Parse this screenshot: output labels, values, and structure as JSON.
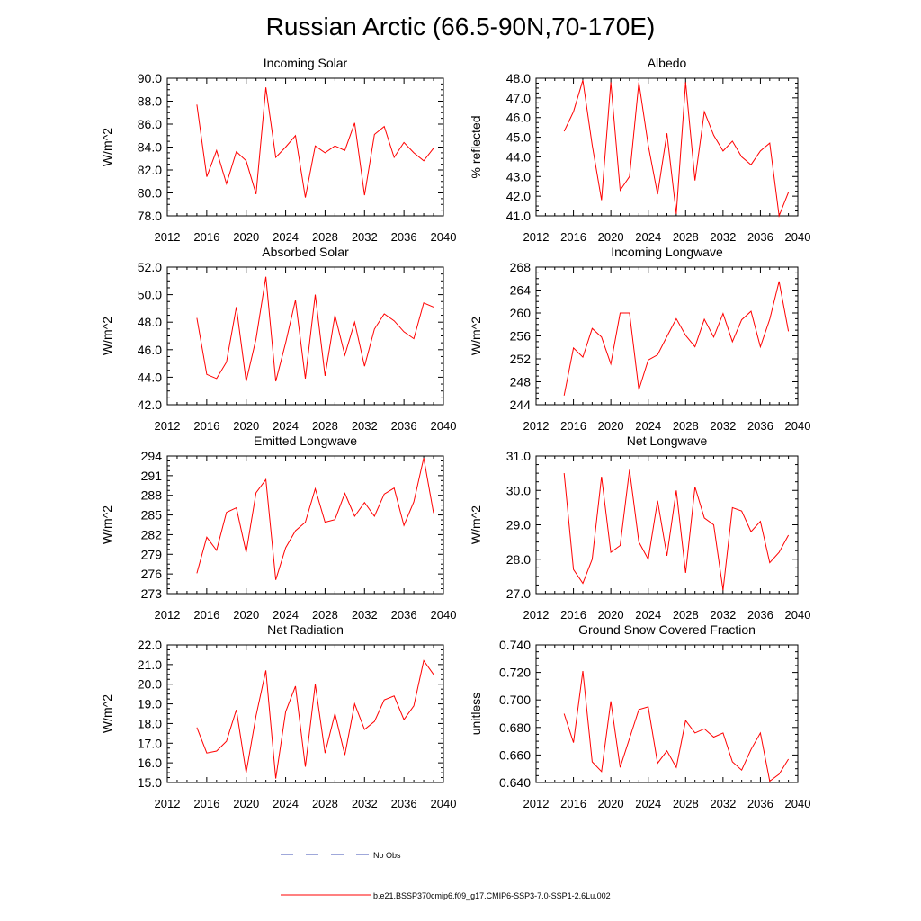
{
  "figure": {
    "title": "Russian Arctic (66.5-90N,70-170E)"
  },
  "legend": [
    {
      "label": "No Obs",
      "color": "#3f51b5",
      "style": "dashed"
    },
    {
      "label": "b.e21.BSSP370cmip6.f09_g17.CMIP6-SSP3-7.0-SSP1-2.6Lu.002",
      "color": "#ff0000",
      "style": "solid"
    }
  ],
  "chart_data": [
    {
      "type": "line",
      "title": "Incoming Solar",
      "xlabel": "",
      "ylabel": "W/m^2",
      "xlim": [
        2012,
        2040
      ],
      "ylim": [
        78.0,
        90.0
      ],
      "xticks": [
        2012,
        2016,
        2020,
        2024,
        2028,
        2032,
        2036,
        2040
      ],
      "yticks": [
        "78.0",
        "80.0",
        "82.0",
        "84.0",
        "86.0",
        "88.0",
        "90.0"
      ],
      "series": [
        {
          "color": "#ff0000",
          "x": [
            2015,
            2016,
            2017,
            2018,
            2019,
            2020,
            2021,
            2022,
            2023,
            2024,
            2025,
            2026,
            2027,
            2028,
            2029,
            2030,
            2031,
            2032,
            2033,
            2034,
            2035,
            2036,
            2037,
            2038,
            2039
          ],
          "values": [
            87.7,
            81.4,
            83.7,
            80.8,
            83.6,
            82.8,
            79.9,
            89.2,
            83.1,
            84.0,
            85.0,
            79.6,
            84.1,
            83.5,
            84.1,
            83.7,
            86.1,
            79.8,
            85.1,
            85.8,
            83.1,
            84.4,
            83.5,
            82.8,
            83.9
          ]
        }
      ]
    },
    {
      "type": "line",
      "title": "Albedo",
      "xlabel": "",
      "ylabel": "% reflected",
      "xlim": [
        2012,
        2040
      ],
      "ylim": [
        41.0,
        48.0
      ],
      "xticks": [
        2012,
        2016,
        2020,
        2024,
        2028,
        2032,
        2036,
        2040
      ],
      "yticks": [
        "41.0",
        "42.0",
        "43.0",
        "44.0",
        "45.0",
        "46.0",
        "47.0",
        "48.0"
      ],
      "series": [
        {
          "color": "#ff0000",
          "x": [
            2015,
            2016,
            2017,
            2018,
            2019,
            2020,
            2021,
            2022,
            2023,
            2024,
            2025,
            2026,
            2027,
            2028,
            2029,
            2030,
            2031,
            2032,
            2033,
            2034,
            2035,
            2036,
            2037,
            2038,
            2039
          ],
          "values": [
            45.3,
            46.3,
            47.9,
            44.6,
            41.8,
            47.8,
            42.3,
            43.0,
            47.8,
            44.6,
            42.1,
            45.2,
            41.1,
            47.8,
            42.8,
            46.3,
            45.1,
            44.3,
            44.8,
            44.0,
            43.6,
            44.3,
            44.7,
            41.0,
            42.2
          ]
        }
      ]
    },
    {
      "type": "line",
      "title": "Absorbed Solar",
      "xlabel": "",
      "ylabel": "W/m^2",
      "xlim": [
        2012,
        2040
      ],
      "ylim": [
        42.0,
        52.0
      ],
      "xticks": [
        2012,
        2016,
        2020,
        2024,
        2028,
        2032,
        2036,
        2040
      ],
      "yticks": [
        "42.0",
        "44.0",
        "46.0",
        "48.0",
        "50.0",
        "52.0"
      ],
      "series": [
        {
          "color": "#ff0000",
          "x": [
            2015,
            2016,
            2017,
            2018,
            2019,
            2020,
            2021,
            2022,
            2023,
            2024,
            2025,
            2026,
            2027,
            2028,
            2029,
            2030,
            2031,
            2032,
            2033,
            2034,
            2035,
            2036,
            2037,
            2038,
            2039
          ],
          "values": [
            48.3,
            44.2,
            43.9,
            45.1,
            49.1,
            43.7,
            46.8,
            51.3,
            43.7,
            46.5,
            49.6,
            43.9,
            50.0,
            44.1,
            48.5,
            45.6,
            48.0,
            44.8,
            47.5,
            48.6,
            48.1,
            47.3,
            46.8,
            49.4,
            49.1
          ]
        }
      ]
    },
    {
      "type": "line",
      "title": "Incoming Longwave",
      "xlabel": "",
      "ylabel": "W/m^2",
      "xlim": [
        2012,
        2040
      ],
      "ylim": [
        244,
        268
      ],
      "xticks": [
        2012,
        2016,
        2020,
        2024,
        2028,
        2032,
        2036,
        2040
      ],
      "yticks": [
        "244",
        "248",
        "252",
        "256",
        "260",
        "264",
        "268"
      ],
      "series": [
        {
          "color": "#ff0000",
          "x": [
            2015,
            2016,
            2017,
            2018,
            2019,
            2020,
            2021,
            2022,
            2023,
            2024,
            2025,
            2026,
            2027,
            2028,
            2029,
            2030,
            2031,
            2032,
            2033,
            2034,
            2035,
            2036,
            2037,
            2038,
            2039
          ],
          "values": [
            245.6,
            253.9,
            252.3,
            257.3,
            255.8,
            251.1,
            260.0,
            260.0,
            246.6,
            251.8,
            252.7,
            255.9,
            259.0,
            256.1,
            254.1,
            258.9,
            255.8,
            259.9,
            255.0,
            258.8,
            260.3,
            254.1,
            258.9,
            265.5,
            256.8
          ]
        }
      ]
    },
    {
      "type": "line",
      "title": "Emitted Longwave",
      "xlabel": "",
      "ylabel": "W/m^2",
      "xlim": [
        2012,
        2040
      ],
      "ylim": [
        273,
        294
      ],
      "xticks": [
        2012,
        2016,
        2020,
        2024,
        2028,
        2032,
        2036,
        2040
      ],
      "yticks": [
        "273",
        "276",
        "279",
        "282",
        "285",
        "288",
        "291",
        "294"
      ],
      "series": [
        {
          "color": "#ff0000",
          "x": [
            2015,
            2016,
            2017,
            2018,
            2019,
            2020,
            2021,
            2022,
            2023,
            2024,
            2025,
            2026,
            2027,
            2028,
            2029,
            2030,
            2031,
            2032,
            2033,
            2034,
            2035,
            2036,
            2037,
            2038,
            2039
          ],
          "values": [
            276.1,
            281.6,
            279.6,
            285.4,
            286.1,
            279.3,
            288.4,
            290.4,
            275.1,
            280.0,
            282.6,
            283.9,
            289.0,
            283.9,
            284.3,
            288.3,
            284.8,
            286.9,
            284.8,
            288.2,
            289.1,
            283.4,
            287.0,
            293.7,
            285.3
          ]
        }
      ]
    },
    {
      "type": "line",
      "title": "Net Longwave",
      "xlabel": "",
      "ylabel": "W/m^2",
      "xlim": [
        2012,
        2040
      ],
      "ylim": [
        27.0,
        31.0
      ],
      "xticks": [
        2012,
        2016,
        2020,
        2024,
        2028,
        2032,
        2036,
        2040
      ],
      "yticks": [
        "27.0",
        "28.0",
        "29.0",
        "30.0",
        "31.0"
      ],
      "series": [
        {
          "color": "#ff0000",
          "x": [
            2015,
            2016,
            2017,
            2018,
            2019,
            2020,
            2021,
            2022,
            2023,
            2024,
            2025,
            2026,
            2027,
            2028,
            2029,
            2030,
            2031,
            2032,
            2033,
            2034,
            2035,
            2036,
            2037,
            2038,
            2039
          ],
          "values": [
            30.5,
            27.7,
            27.3,
            28.0,
            30.4,
            28.2,
            28.4,
            30.6,
            28.5,
            28.0,
            29.7,
            28.1,
            30.0,
            27.6,
            30.1,
            29.2,
            29.0,
            27.1,
            29.5,
            29.4,
            28.8,
            29.1,
            27.9,
            28.2,
            28.7
          ]
        }
      ]
    },
    {
      "type": "line",
      "title": "Net Radiation",
      "xlabel": "",
      "ylabel": "W/m^2",
      "xlim": [
        2012,
        2040
      ],
      "ylim": [
        15.0,
        22.0
      ],
      "xticks": [
        2012,
        2016,
        2020,
        2024,
        2028,
        2032,
        2036,
        2040
      ],
      "yticks": [
        "15.0",
        "16.0",
        "17.0",
        "18.0",
        "19.0",
        "20.0",
        "21.0",
        "22.0"
      ],
      "series": [
        {
          "color": "#ff0000",
          "x": [
            2015,
            2016,
            2017,
            2018,
            2019,
            2020,
            2021,
            2022,
            2023,
            2024,
            2025,
            2026,
            2027,
            2028,
            2029,
            2030,
            2031,
            2032,
            2033,
            2034,
            2035,
            2036,
            2037,
            2038,
            2039
          ],
          "values": [
            17.8,
            16.5,
            16.6,
            17.1,
            18.7,
            15.5,
            18.4,
            20.7,
            15.2,
            18.6,
            19.9,
            15.8,
            20.0,
            16.5,
            18.5,
            16.4,
            19.0,
            17.7,
            18.1,
            19.2,
            19.4,
            18.2,
            18.9,
            21.2,
            20.5
          ]
        }
      ]
    },
    {
      "type": "line",
      "title": "Ground Snow Covered Fraction",
      "xlabel": "",
      "ylabel": "unitless",
      "xlim": [
        2012,
        2040
      ],
      "ylim": [
        0.64,
        0.74
      ],
      "xticks": [
        2012,
        2016,
        2020,
        2024,
        2028,
        2032,
        2036,
        2040
      ],
      "yticks": [
        "0.640",
        "0.660",
        "0.680",
        "0.700",
        "0.720",
        "0.740"
      ],
      "series": [
        {
          "color": "#ff0000",
          "x": [
            2015,
            2016,
            2017,
            2018,
            2019,
            2020,
            2021,
            2022,
            2023,
            2024,
            2025,
            2026,
            2027,
            2028,
            2029,
            2030,
            2031,
            2032,
            2033,
            2034,
            2035,
            2036,
            2037,
            2038,
            2039
          ],
          "values": [
            0.69,
            0.669,
            0.721,
            0.655,
            0.648,
            0.699,
            0.651,
            0.672,
            0.693,
            0.695,
            0.654,
            0.663,
            0.651,
            0.685,
            0.676,
            0.679,
            0.673,
            0.676,
            0.655,
            0.649,
            0.664,
            0.676,
            0.641,
            0.646,
            0.657
          ]
        }
      ]
    }
  ]
}
